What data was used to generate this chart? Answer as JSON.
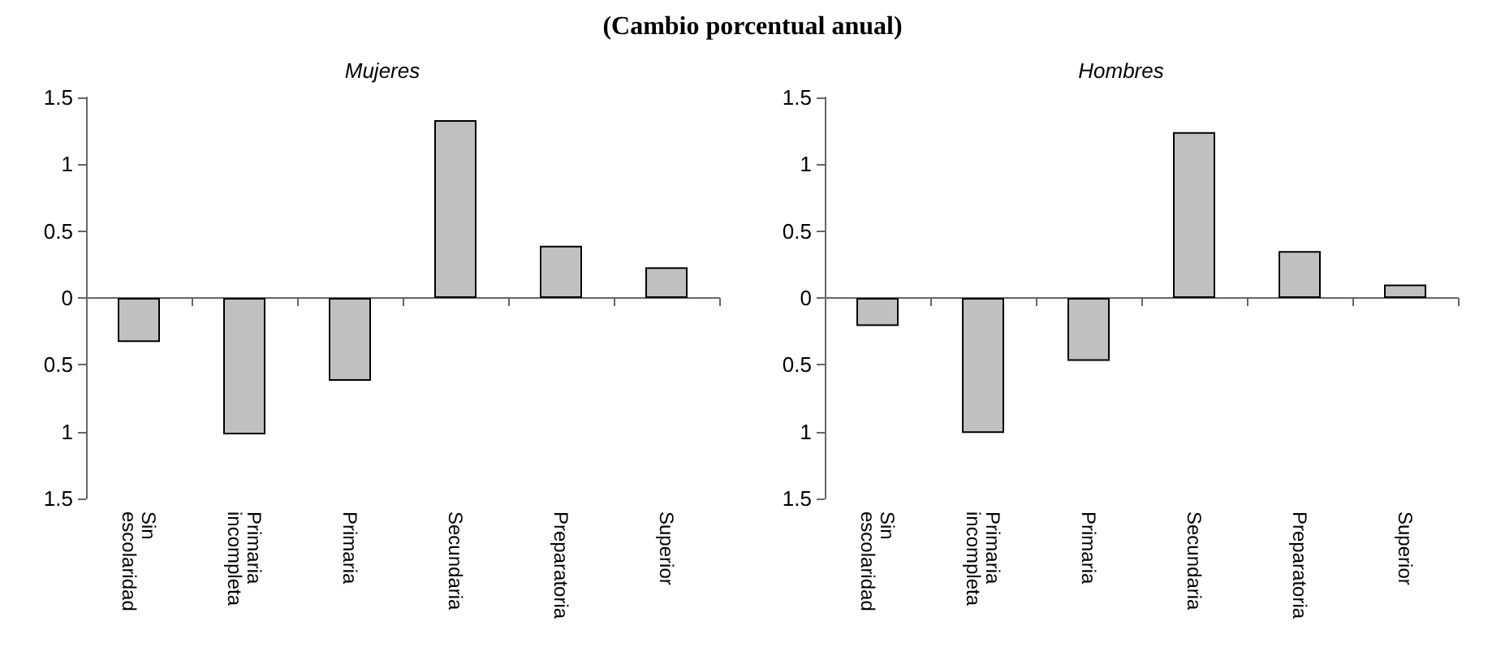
{
  "chart_data": [
    {
      "type": "bar",
      "title": "Mujeres",
      "annotations": [
        "(Cambio porcentual anual)"
      ],
      "categories": [
        "Sin\nescolaridad",
        "Primaria\nincompleta",
        "Primaria",
        "Secundaria",
        "Preparatoria",
        "Superior"
      ],
      "values": [
        -0.33,
        -1.02,
        -0.62,
        1.33,
        0.39,
        0.23
      ],
      "color": "#c0c0c0",
      "ylim": [
        -1.5,
        1.5
      ],
      "yticks": [
        {
          "value": -1.5,
          "label": "1.5"
        },
        {
          "value": -1,
          "label": "1"
        },
        {
          "value": -0.5,
          "label": "0.5"
        },
        0,
        0.5,
        1,
        1.5
      ]
    },
    {
      "type": "bar",
      "title": "Hombres",
      "categories": [
        "Sin\nescolaridad",
        "Primaria\nincompleta",
        "Primaria",
        "Secundaria",
        "Preparatoria",
        "Superior"
      ],
      "values": [
        -0.21,
        -1.01,
        -0.47,
        1.24,
        0.35,
        0.1
      ],
      "color": "#c0c0c0",
      "ylim": [
        -1.5,
        1.5
      ],
      "yticks": [
        {
          "value": -1.5,
          "label": "1.5"
        },
        {
          "value": -1,
          "label": "1"
        },
        {
          "value": -0.5,
          "label": "0.5"
        },
        0,
        0.5,
        1,
        1.5
      ]
    }
  ]
}
